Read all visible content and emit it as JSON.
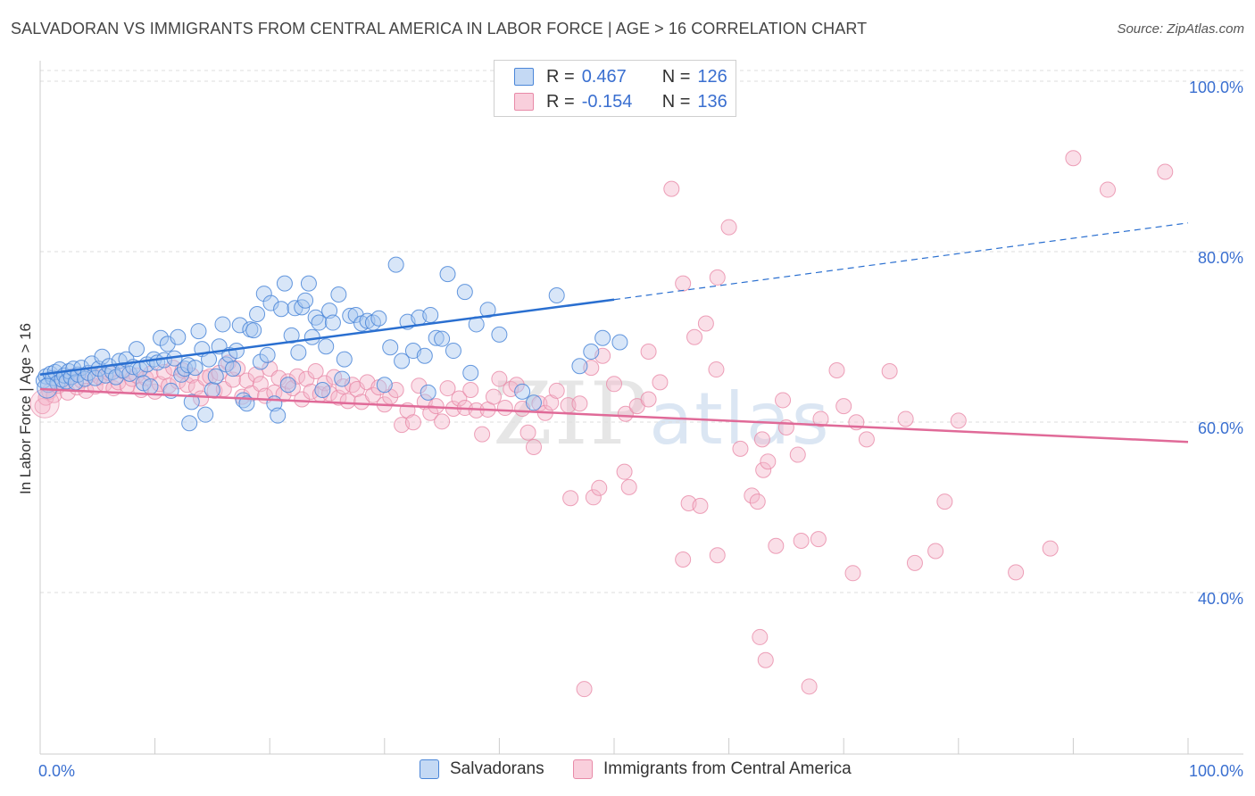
{
  "title": "SALVADORAN VS IMMIGRANTS FROM CENTRAL AMERICA IN LABOR FORCE | AGE > 16 CORRELATION CHART",
  "source": "Source: ZipAtlas.com",
  "watermark": {
    "zip": "ZIP",
    "atlas": "atlas"
  },
  "legend": {
    "r_label": "R =",
    "n_label": "N =",
    "series1": {
      "r": "0.467",
      "n": "126"
    },
    "series2": {
      "r": "-0.154",
      "n": "136"
    }
  },
  "bottom_legend": {
    "series1": "Salvadorans",
    "series2": "Immigrants from Central America"
  },
  "colors": {
    "blue_fill": "#a8c8f0",
    "blue_stroke": "#4a86d8",
    "blue_line": "#2a6fd0",
    "pink_fill": "#f5b8cc",
    "pink_stroke": "#e88aa8",
    "pink_line": "#e06a98",
    "axis_text": "#3a6fd0",
    "grid": "#dddddd"
  },
  "chart_data": {
    "type": "scatter",
    "title": "SALVADORAN VS IMMIGRANTS FROM CENTRAL AMERICA IN LABOR FORCE | AGE > 16 CORRELATION CHART",
    "xlabel": "",
    "ylabel": "In Labor Force | Age > 16",
    "xlim": [
      0,
      100
    ],
    "ylim": [
      20,
      102
    ],
    "x_tick_labels": [
      "0.0%",
      "100.0%"
    ],
    "y_ticks": [
      40,
      60,
      80,
      100
    ],
    "y_tick_labels": [
      "40.0%",
      "60.0%",
      "80.0%",
      "100.0%"
    ],
    "grid": true,
    "series": [
      {
        "name": "Salvadorans",
        "r": 0.467,
        "n": 126,
        "trend": {
          "x0": 0,
          "y0": 66.2,
          "x1": 50,
          "y1": 75.0,
          "dash_x1": 100,
          "dash_y1": 84.0
        },
        "points": [
          [
            0.3,
            65.5
          ],
          [
            0.5,
            66
          ],
          [
            0.7,
            65
          ],
          [
            0.9,
            66.3
          ],
          [
            1.1,
            65.8
          ],
          [
            1.3,
            66.5
          ],
          [
            1.5,
            65.2
          ],
          [
            1.7,
            66.8
          ],
          [
            1.9,
            65.6
          ],
          [
            2.1,
            66.1
          ],
          [
            2.3,
            65.4
          ],
          [
            2.5,
            66.6
          ],
          [
            2.7,
            65.9
          ],
          [
            2.9,
            66.9
          ],
          [
            3.1,
            65.3
          ],
          [
            3.3,
            66.2
          ],
          [
            3.6,
            67.0
          ],
          [
            3.9,
            65.7
          ],
          [
            4.2,
            66.4
          ],
          [
            4.5,
            67.5
          ],
          [
            4.8,
            65.8
          ],
          [
            5.1,
            66.9
          ],
          [
            5.4,
            68.3
          ],
          [
            5.7,
            66.1
          ],
          [
            6.0,
            67.2
          ],
          [
            6.3,
            66.5
          ],
          [
            6.6,
            65.9
          ],
          [
            6.9,
            67.8
          ],
          [
            7.2,
            66.7
          ],
          [
            7.5,
            68.0
          ],
          [
            7.8,
            66.3
          ],
          [
            8.1,
            67.1
          ],
          [
            8.4,
            69.2
          ],
          [
            8.7,
            66.8
          ],
          [
            9.0,
            65.2
          ],
          [
            9.3,
            67.4
          ],
          [
            9.6,
            64.8
          ],
          [
            9.9,
            68.0
          ],
          [
            10.2,
            67.6
          ],
          [
            10.5,
            70.5
          ],
          [
            10.8,
            67.9
          ],
          [
            11.1,
            69.8
          ],
          [
            11.4,
            64.3
          ],
          [
            11.7,
            68.1
          ],
          [
            12.0,
            70.6
          ],
          [
            12.3,
            66.2
          ],
          [
            12.6,
            66.9
          ],
          [
            12.9,
            67.3
          ],
          [
            13.2,
            63.0
          ],
          [
            13.5,
            67.0
          ],
          [
            13.8,
            71.3
          ],
          [
            14.1,
            69.2
          ],
          [
            14.4,
            61.5
          ],
          [
            14.7,
            68.0
          ],
          [
            15.0,
            64.4
          ],
          [
            15.3,
            66.0
          ],
          [
            15.6,
            69.5
          ],
          [
            15.9,
            72.1
          ],
          [
            16.2,
            67.4
          ],
          [
            16.5,
            68.5
          ],
          [
            16.8,
            66.9
          ],
          [
            17.1,
            69.0
          ],
          [
            17.4,
            72.0
          ],
          [
            17.7,
            63.2
          ],
          [
            18.0,
            62.8
          ],
          [
            18.3,
            71.5
          ],
          [
            18.6,
            71.4
          ],
          [
            18.9,
            73.3
          ],
          [
            19.2,
            67.7
          ],
          [
            19.5,
            75.7
          ],
          [
            19.8,
            68.5
          ],
          [
            20.1,
            74.6
          ],
          [
            20.4,
            62.8
          ],
          [
            20.7,
            61.4
          ],
          [
            21.0,
            73.9
          ],
          [
            21.3,
            76.9
          ],
          [
            21.6,
            65.0
          ],
          [
            21.9,
            70.8
          ],
          [
            22.2,
            74.0
          ],
          [
            22.5,
            68.8
          ],
          [
            22.8,
            74.1
          ],
          [
            23.1,
            74.9
          ],
          [
            23.4,
            76.9
          ],
          [
            23.7,
            70.6
          ],
          [
            24.0,
            72.9
          ],
          [
            24.3,
            72.3
          ],
          [
            24.6,
            64.4
          ],
          [
            24.9,
            69.5
          ],
          [
            25.2,
            73.7
          ],
          [
            25.5,
            72.3
          ],
          [
            26.0,
            75.6
          ],
          [
            26.5,
            68.0
          ],
          [
            27.0,
            73.1
          ],
          [
            27.5,
            73.2
          ],
          [
            28.0,
            72.2
          ],
          [
            28.5,
            72.5
          ],
          [
            29.0,
            72.3
          ],
          [
            29.5,
            72.8
          ],
          [
            30.0,
            65.0
          ],
          [
            30.5,
            69.4
          ],
          [
            31.0,
            79.1
          ],
          [
            31.5,
            67.8
          ],
          [
            32.0,
            72.4
          ],
          [
            32.5,
            69.0
          ],
          [
            33.0,
            72.9
          ],
          [
            33.5,
            68.4
          ],
          [
            34.0,
            73.2
          ],
          [
            34.5,
            70.5
          ],
          [
            35.0,
            70.4
          ],
          [
            35.5,
            78.0
          ],
          [
            36.0,
            69.0
          ],
          [
            37.0,
            75.9
          ],
          [
            38.0,
            72.1
          ],
          [
            39.0,
            73.8
          ],
          [
            40.0,
            70.9
          ],
          [
            42.0,
            64.2
          ],
          [
            43.0,
            62.9
          ],
          [
            45.0,
            75.5
          ],
          [
            47.0,
            67.2
          ],
          [
            48.0,
            68.9
          ],
          [
            49.0,
            70.5
          ],
          [
            50.5,
            70.0
          ],
          [
            26.3,
            65.7
          ],
          [
            37.5,
            66.4
          ],
          [
            33.8,
            64.1
          ],
          [
            13.0,
            60.5
          ]
        ]
      },
      {
        "name": "Immigrants from Central America",
        "r": -0.154,
        "n": 136,
        "trend": {
          "x0": 0,
          "y0": 64.5,
          "x1": 100,
          "y1": 58.3
        },
        "points": [
          [
            0.2,
            62.5
          ],
          [
            0.5,
            63.5
          ],
          [
            0.8,
            64.2
          ],
          [
            1.2,
            63.8
          ],
          [
            1.6,
            64.9
          ],
          [
            2.0,
            65.2
          ],
          [
            2.4,
            64.1
          ],
          [
            2.8,
            66.0
          ],
          [
            3.2,
            64.7
          ],
          [
            3.6,
            65.5
          ],
          [
            4.0,
            64.3
          ],
          [
            4.4,
            66.2
          ],
          [
            4.8,
            64.8
          ],
          [
            5.2,
            65.9
          ],
          [
            5.6,
            65.1
          ],
          [
            6.0,
            66.4
          ],
          [
            6.4,
            64.6
          ],
          [
            6.8,
            65.3
          ],
          [
            7.2,
            66.6
          ],
          [
            7.6,
            64.9
          ],
          [
            8.0,
            65.7
          ],
          [
            8.4,
            66.1
          ],
          [
            8.8,
            64.4
          ],
          [
            9.2,
            65.8
          ],
          [
            9.6,
            66.3
          ],
          [
            10.0,
            64.2
          ],
          [
            10.4,
            65.1
          ],
          [
            10.8,
            66.5
          ],
          [
            11.2,
            64.9
          ],
          [
            11.6,
            67.0
          ],
          [
            12.0,
            65.4
          ],
          [
            12.4,
            66.7
          ],
          [
            12.8,
            65.0
          ],
          [
            13.2,
            66.1
          ],
          [
            13.6,
            64.7
          ],
          [
            14.0,
            63.4
          ],
          [
            14.4,
            65.8
          ],
          [
            14.8,
            66.0
          ],
          [
            15.2,
            64.3
          ],
          [
            15.6,
            66.4
          ],
          [
            16.0,
            64.5
          ],
          [
            16.4,
            67.6
          ],
          [
            16.8,
            65.6
          ],
          [
            17.2,
            66.9
          ],
          [
            17.6,
            63.6
          ],
          [
            18.0,
            65.5
          ],
          [
            18.4,
            64.0
          ],
          [
            18.8,
            66.2
          ],
          [
            19.2,
            65.1
          ],
          [
            19.6,
            63.7
          ],
          [
            20.0,
            66.9
          ],
          [
            20.4,
            64.1
          ],
          [
            20.8,
            65.8
          ],
          [
            21.2,
            63.9
          ],
          [
            21.6,
            65.4
          ],
          [
            22.0,
            64.6
          ],
          [
            22.4,
            66.0
          ],
          [
            22.8,
            63.3
          ],
          [
            23.2,
            65.7
          ],
          [
            23.6,
            64.2
          ],
          [
            24.0,
            66.6
          ],
          [
            24.4,
            63.9
          ],
          [
            24.8,
            65.2
          ],
          [
            25.2,
            64.0
          ],
          [
            25.6,
            65.9
          ],
          [
            26.0,
            63.5
          ],
          [
            26.4,
            64.8
          ],
          [
            26.8,
            63.1
          ],
          [
            27.2,
            65.0
          ],
          [
            27.6,
            64.5
          ],
          [
            28.0,
            63.0
          ],
          [
            28.5,
            65.3
          ],
          [
            29.0,
            63.8
          ],
          [
            29.5,
            64.7
          ],
          [
            30.0,
            62.7
          ],
          [
            30.5,
            63.6
          ],
          [
            31.0,
            64.4
          ],
          [
            31.5,
            60.3
          ],
          [
            32.0,
            62.0
          ],
          [
            32.5,
            60.6
          ],
          [
            33.0,
            64.9
          ],
          [
            33.5,
            63.0
          ],
          [
            34.0,
            61.7
          ],
          [
            34.5,
            62.5
          ],
          [
            35.0,
            60.7
          ],
          [
            35.5,
            64.6
          ],
          [
            36.0,
            62.2
          ],
          [
            36.5,
            63.4
          ],
          [
            37.0,
            62.3
          ],
          [
            37.5,
            64.4
          ],
          [
            38.0,
            62.0
          ],
          [
            38.5,
            59.2
          ],
          [
            39.0,
            62.1
          ],
          [
            39.5,
            63.6
          ],
          [
            40.0,
            65.7
          ],
          [
            40.5,
            62.3
          ],
          [
            41.0,
            64.5
          ],
          [
            41.5,
            65.0
          ],
          [
            42.0,
            62.2
          ],
          [
            42.5,
            59.4
          ],
          [
            43.0,
            57.7
          ],
          [
            43.5,
            62.8
          ],
          [
            44.0,
            61.7
          ],
          [
            44.5,
            62.9
          ],
          [
            45.0,
            64.3
          ],
          [
            46.0,
            62.6
          ],
          [
            47.0,
            62.8
          ],
          [
            48.0,
            67.0
          ],
          [
            49.0,
            68.4
          ],
          [
            50.0,
            65.1
          ],
          [
            51.0,
            61.6
          ],
          [
            52.0,
            62.5
          ],
          [
            53.0,
            63.3
          ],
          [
            54.0,
            65.3
          ],
          [
            55.0,
            88.0
          ],
          [
            56.0,
            76.9
          ],
          [
            57.0,
            70.6
          ],
          [
            58.0,
            72.2
          ],
          [
            59.0,
            77.6
          ],
          [
            60.0,
            83.5
          ],
          [
            61.0,
            57.5
          ],
          [
            62.0,
            52.0
          ],
          [
            63.0,
            55.0
          ],
          [
            65.0,
            60.0
          ],
          [
            66.0,
            56.8
          ],
          [
            68.0,
            61.0
          ],
          [
            70.0,
            62.5
          ],
          [
            72.0,
            58.6
          ],
          [
            74.0,
            66.6
          ],
          [
            78.0,
            45.5
          ],
          [
            80.0,
            60.8
          ],
          [
            85.0,
            43.0
          ],
          [
            88.0,
            45.8
          ],
          [
            90.0,
            91.6
          ],
          [
            93.0,
            87.9
          ],
          [
            98.0,
            90.0
          ]
        ]
      }
    ]
  },
  "extra_points": {
    "pink": [
      [
        50.9,
        54.8
      ],
      [
        51.3,
        53.0
      ],
      [
        48.2,
        51.8
      ],
      [
        46.2,
        51.7
      ],
      [
        48.7,
        52.9
      ],
      [
        56.5,
        51.1
      ],
      [
        57.5,
        50.8
      ],
      [
        62.5,
        51.3
      ],
      [
        59.0,
        45.0
      ],
      [
        56.0,
        44.5
      ],
      [
        64.1,
        46.1
      ],
      [
        66.3,
        46.7
      ],
      [
        67.8,
        46.9
      ],
      [
        70.8,
        42.9
      ],
      [
        76.2,
        44.1
      ],
      [
        62.7,
        35.4
      ],
      [
        63.2,
        32.7
      ],
      [
        67.0,
        29.6
      ],
      [
        47.4,
        29.3
      ],
      [
        58.9,
        66.8
      ],
      [
        69.4,
        66.7
      ],
      [
        62.9,
        58.6
      ],
      [
        63.4,
        56.0
      ],
      [
        75.4,
        61.0
      ],
      [
        78.8,
        51.3
      ],
      [
        71.1,
        60.6
      ],
      [
        64.7,
        63.2
      ],
      [
        53.0,
        68.9
      ]
    ]
  }
}
